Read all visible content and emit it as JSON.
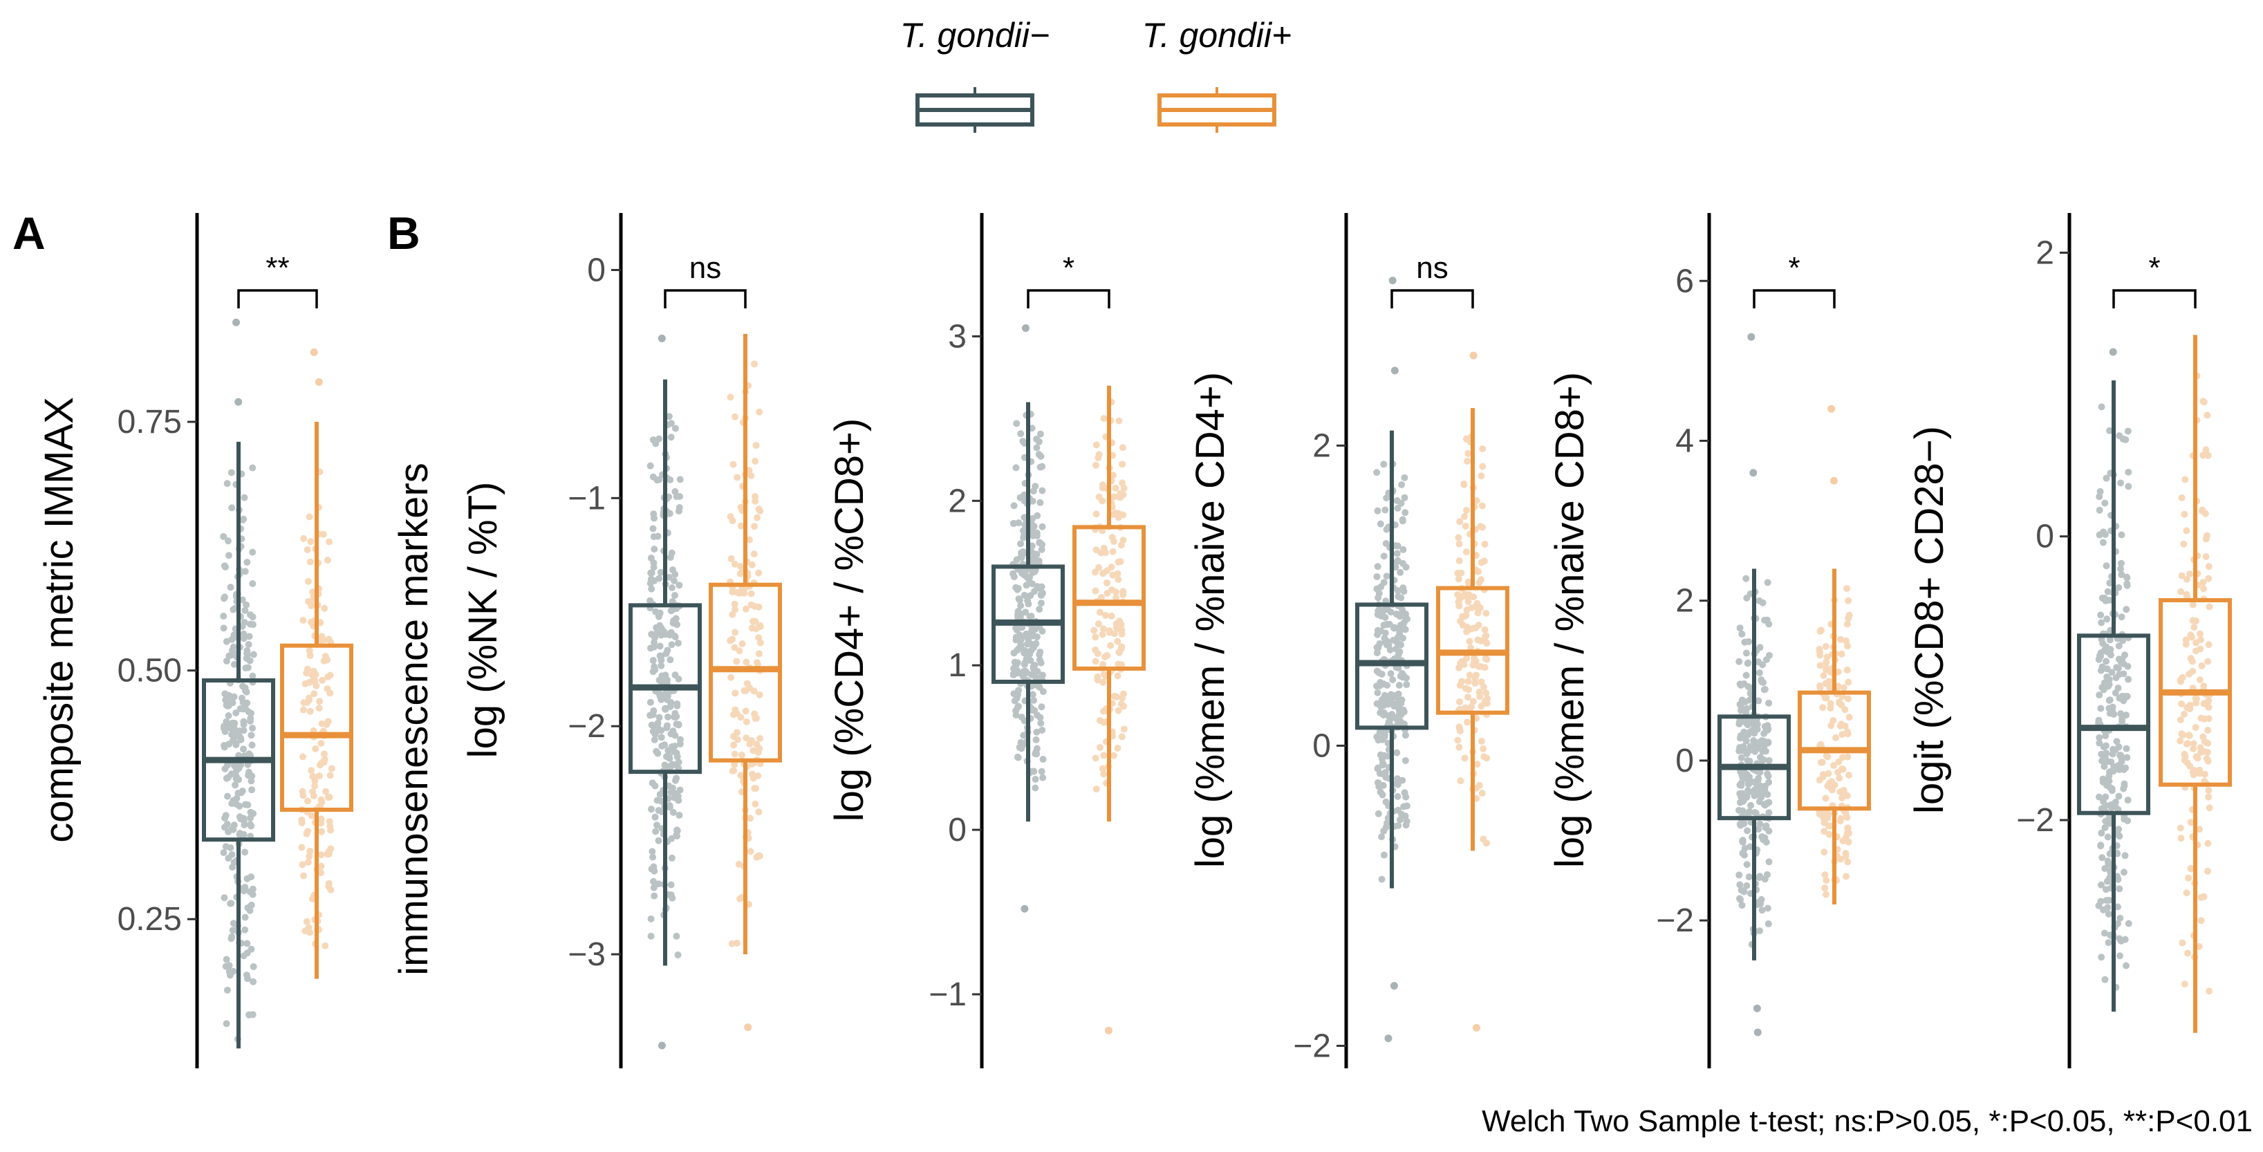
{
  "legend": {
    "items": [
      {
        "label": "T. gondii−",
        "color": "#3d5459"
      },
      {
        "label": "T. gondii+",
        "color": "#e8913a"
      }
    ]
  },
  "caption": "Welch Two Sample t-test; ns:P>0.05, *:P<0.05, **:P<0.01",
  "chart_data": [
    {
      "type": "box",
      "panel": "A",
      "ylabel": "composite metric IMMAX",
      "ylim": [
        0.1,
        0.96
      ],
      "yticks": [
        0.25,
        0.5,
        0.75
      ],
      "tick_labels": [
        "0.25",
        "0.50",
        "0.75"
      ],
      "significance": "**",
      "series": [
        {
          "name": "T. gondii−",
          "min": 0.12,
          "q1": 0.33,
          "median": 0.41,
          "q3": 0.49,
          "max": 0.73,
          "outliers": [
            0.77,
            0.85
          ]
        },
        {
          "name": "T. gondii+",
          "min": 0.19,
          "q1": 0.36,
          "median": 0.435,
          "q3": 0.525,
          "max": 0.75,
          "outliers": [
            0.79,
            0.82
          ]
        }
      ]
    },
    {
      "type": "box",
      "panel": "B",
      "panel_title": "immunosenescence markers",
      "ylabel": "log (%NK / %T)",
      "ylim": [
        -3.5,
        0.25
      ],
      "yticks": [
        -3,
        -2,
        -1,
        0
      ],
      "tick_labels": [
        "−3",
        "−2",
        "−1",
        "0"
      ],
      "significance": "ns",
      "series": [
        {
          "name": "T. gondii−",
          "min": -3.05,
          "q1": -2.2,
          "median": -1.83,
          "q3": -1.47,
          "max": -0.48,
          "outliers": [
            -0.3,
            -3.4
          ]
        },
        {
          "name": "T. gondii+",
          "min": -3.0,
          "q1": -2.15,
          "median": -1.75,
          "q3": -1.38,
          "max": -0.28,
          "outliers": [
            -3.32
          ]
        }
      ]
    },
    {
      "type": "box",
      "ylabel": "log (%CD4+ / %CD8+)",
      "ylim": [
        -1.45,
        3.75
      ],
      "yticks": [
        -1,
        0,
        1,
        2,
        3
      ],
      "tick_labels": [
        "−1",
        "0",
        "1",
        "2",
        "3"
      ],
      "significance": "*",
      "series": [
        {
          "name": "T. gondii−",
          "min": 0.05,
          "q1": 0.9,
          "median": 1.26,
          "q3": 1.6,
          "max": 2.6,
          "outliers": [
            3.05,
            -0.48
          ]
        },
        {
          "name": "T. gondii+",
          "min": 0.05,
          "q1": 0.98,
          "median": 1.38,
          "q3": 1.84,
          "max": 2.7,
          "outliers": [
            -1.22
          ]
        }
      ]
    },
    {
      "type": "box",
      "ylabel": "log (%mem / %naive CD4+)",
      "ylim": [
        -2.15,
        3.55
      ],
      "yticks": [
        -2,
        0,
        2
      ],
      "tick_labels": [
        "−2",
        "0",
        "2"
      ],
      "significance": "ns",
      "series": [
        {
          "name": "T. gondii−",
          "min": -0.95,
          "q1": 0.12,
          "median": 0.55,
          "q3": 0.94,
          "max": 2.1,
          "outliers": [
            2.5,
            3.1,
            -1.6,
            -1.95
          ]
        },
        {
          "name": "T. gondii+",
          "min": -0.7,
          "q1": 0.22,
          "median": 0.62,
          "q3": 1.05,
          "max": 2.25,
          "outliers": [
            2.6,
            -1.88
          ]
        }
      ]
    },
    {
      "type": "box",
      "ylabel": "log (%mem / %naive CD8+)",
      "ylim": [
        -3.85,
        6.85
      ],
      "yticks": [
        -2,
        0,
        2,
        4,
        6
      ],
      "tick_labels": [
        "−2",
        "0",
        "2",
        "4",
        "6"
      ],
      "significance": "*",
      "series": [
        {
          "name": "T. gondii−",
          "min": -2.5,
          "q1": -0.72,
          "median": -0.08,
          "q3": 0.55,
          "max": 2.4,
          "outliers": [
            3.6,
            5.3,
            -3.1,
            -3.4
          ]
        },
        {
          "name": "T. gondii+",
          "min": -1.8,
          "q1": -0.6,
          "median": 0.13,
          "q3": 0.85,
          "max": 2.4,
          "outliers": [
            3.5,
            4.4
          ]
        }
      ]
    },
    {
      "type": "box",
      "ylabel": "logit (%CD8+ CD28−)",
      "ylim": [
        -3.75,
        2.28
      ],
      "yticks": [
        -2,
        0,
        2
      ],
      "tick_labels": [
        "−2",
        "0",
        "2"
      ],
      "significance": "*",
      "series": [
        {
          "name": "T. gondii−",
          "min": -3.35,
          "q1": -1.95,
          "median": -1.35,
          "q3": -0.7,
          "max": 1.1,
          "outliers": [
            1.3
          ]
        },
        {
          "name": "T. gondii+",
          "min": -3.5,
          "q1": -1.75,
          "median": -1.1,
          "q3": -0.45,
          "max": 1.42,
          "outliers": []
        }
      ]
    }
  ]
}
